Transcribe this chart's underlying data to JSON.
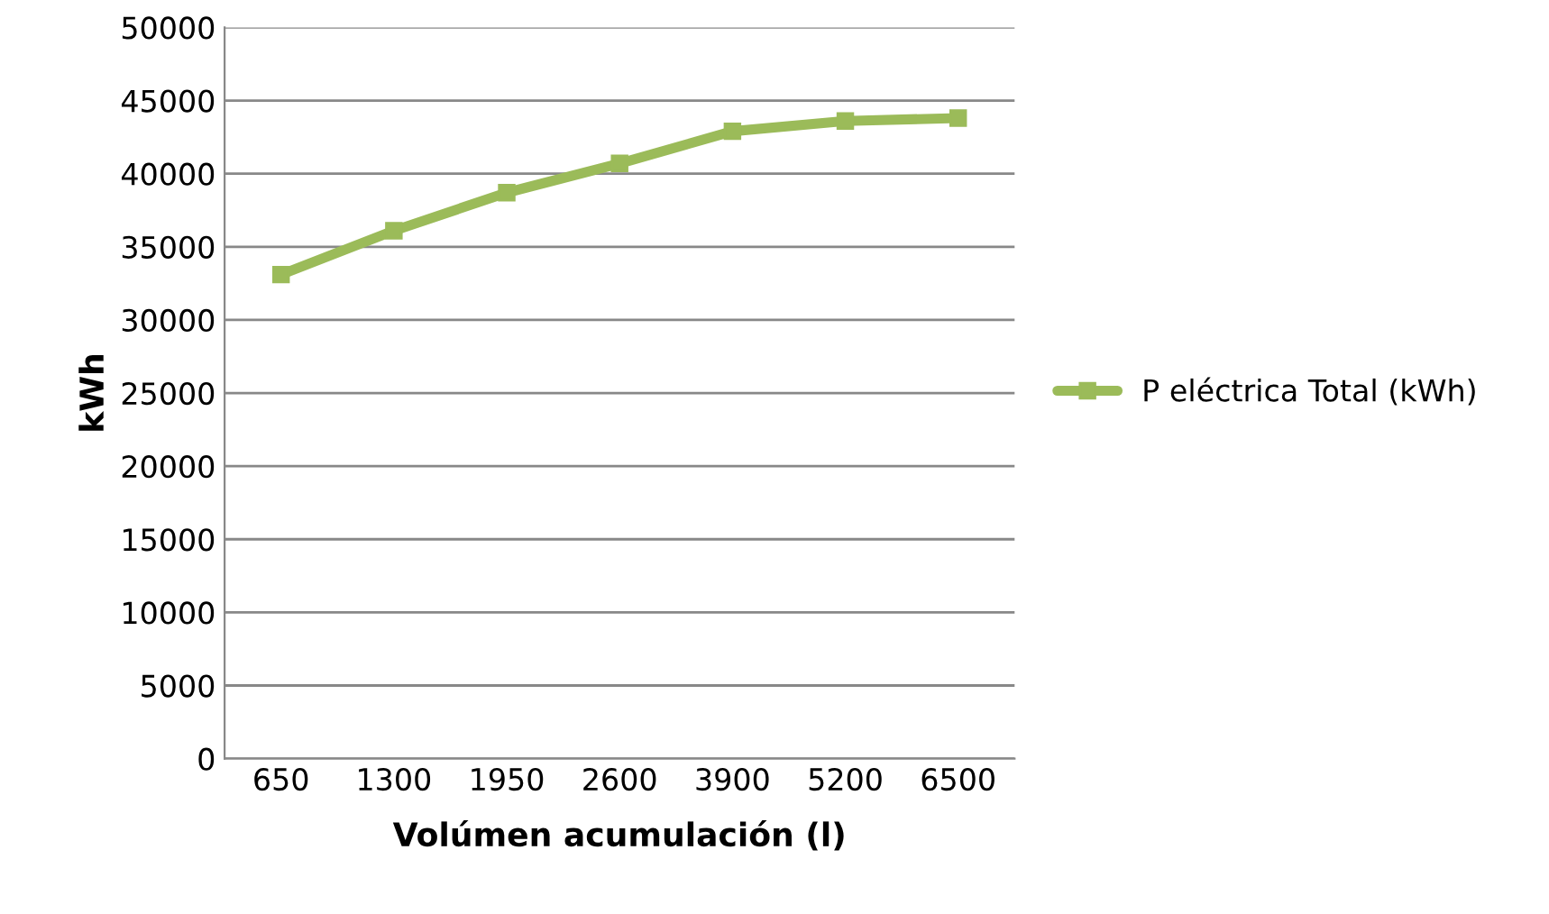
{
  "chart_data": {
    "type": "line",
    "xlabel": "Volúmen acumulación (l)",
    "ylabel": "kWh",
    "categories": [
      "650",
      "1300",
      "1950",
      "2600",
      "3900",
      "5200",
      "6500"
    ],
    "series": [
      {
        "name": "P eléctrica Total (kWh)",
        "color": "#9bbb59",
        "values": [
          33100,
          36100,
          38700,
          40700,
          42900,
          43600,
          43800
        ]
      }
    ],
    "ylim": [
      0,
      50000
    ],
    "yticks": [
      0,
      5000,
      10000,
      15000,
      20000,
      25000,
      30000,
      35000,
      40000,
      45000,
      50000
    ],
    "grid": "y",
    "legend": "right",
    "marker": "square",
    "line_style": "solid"
  }
}
